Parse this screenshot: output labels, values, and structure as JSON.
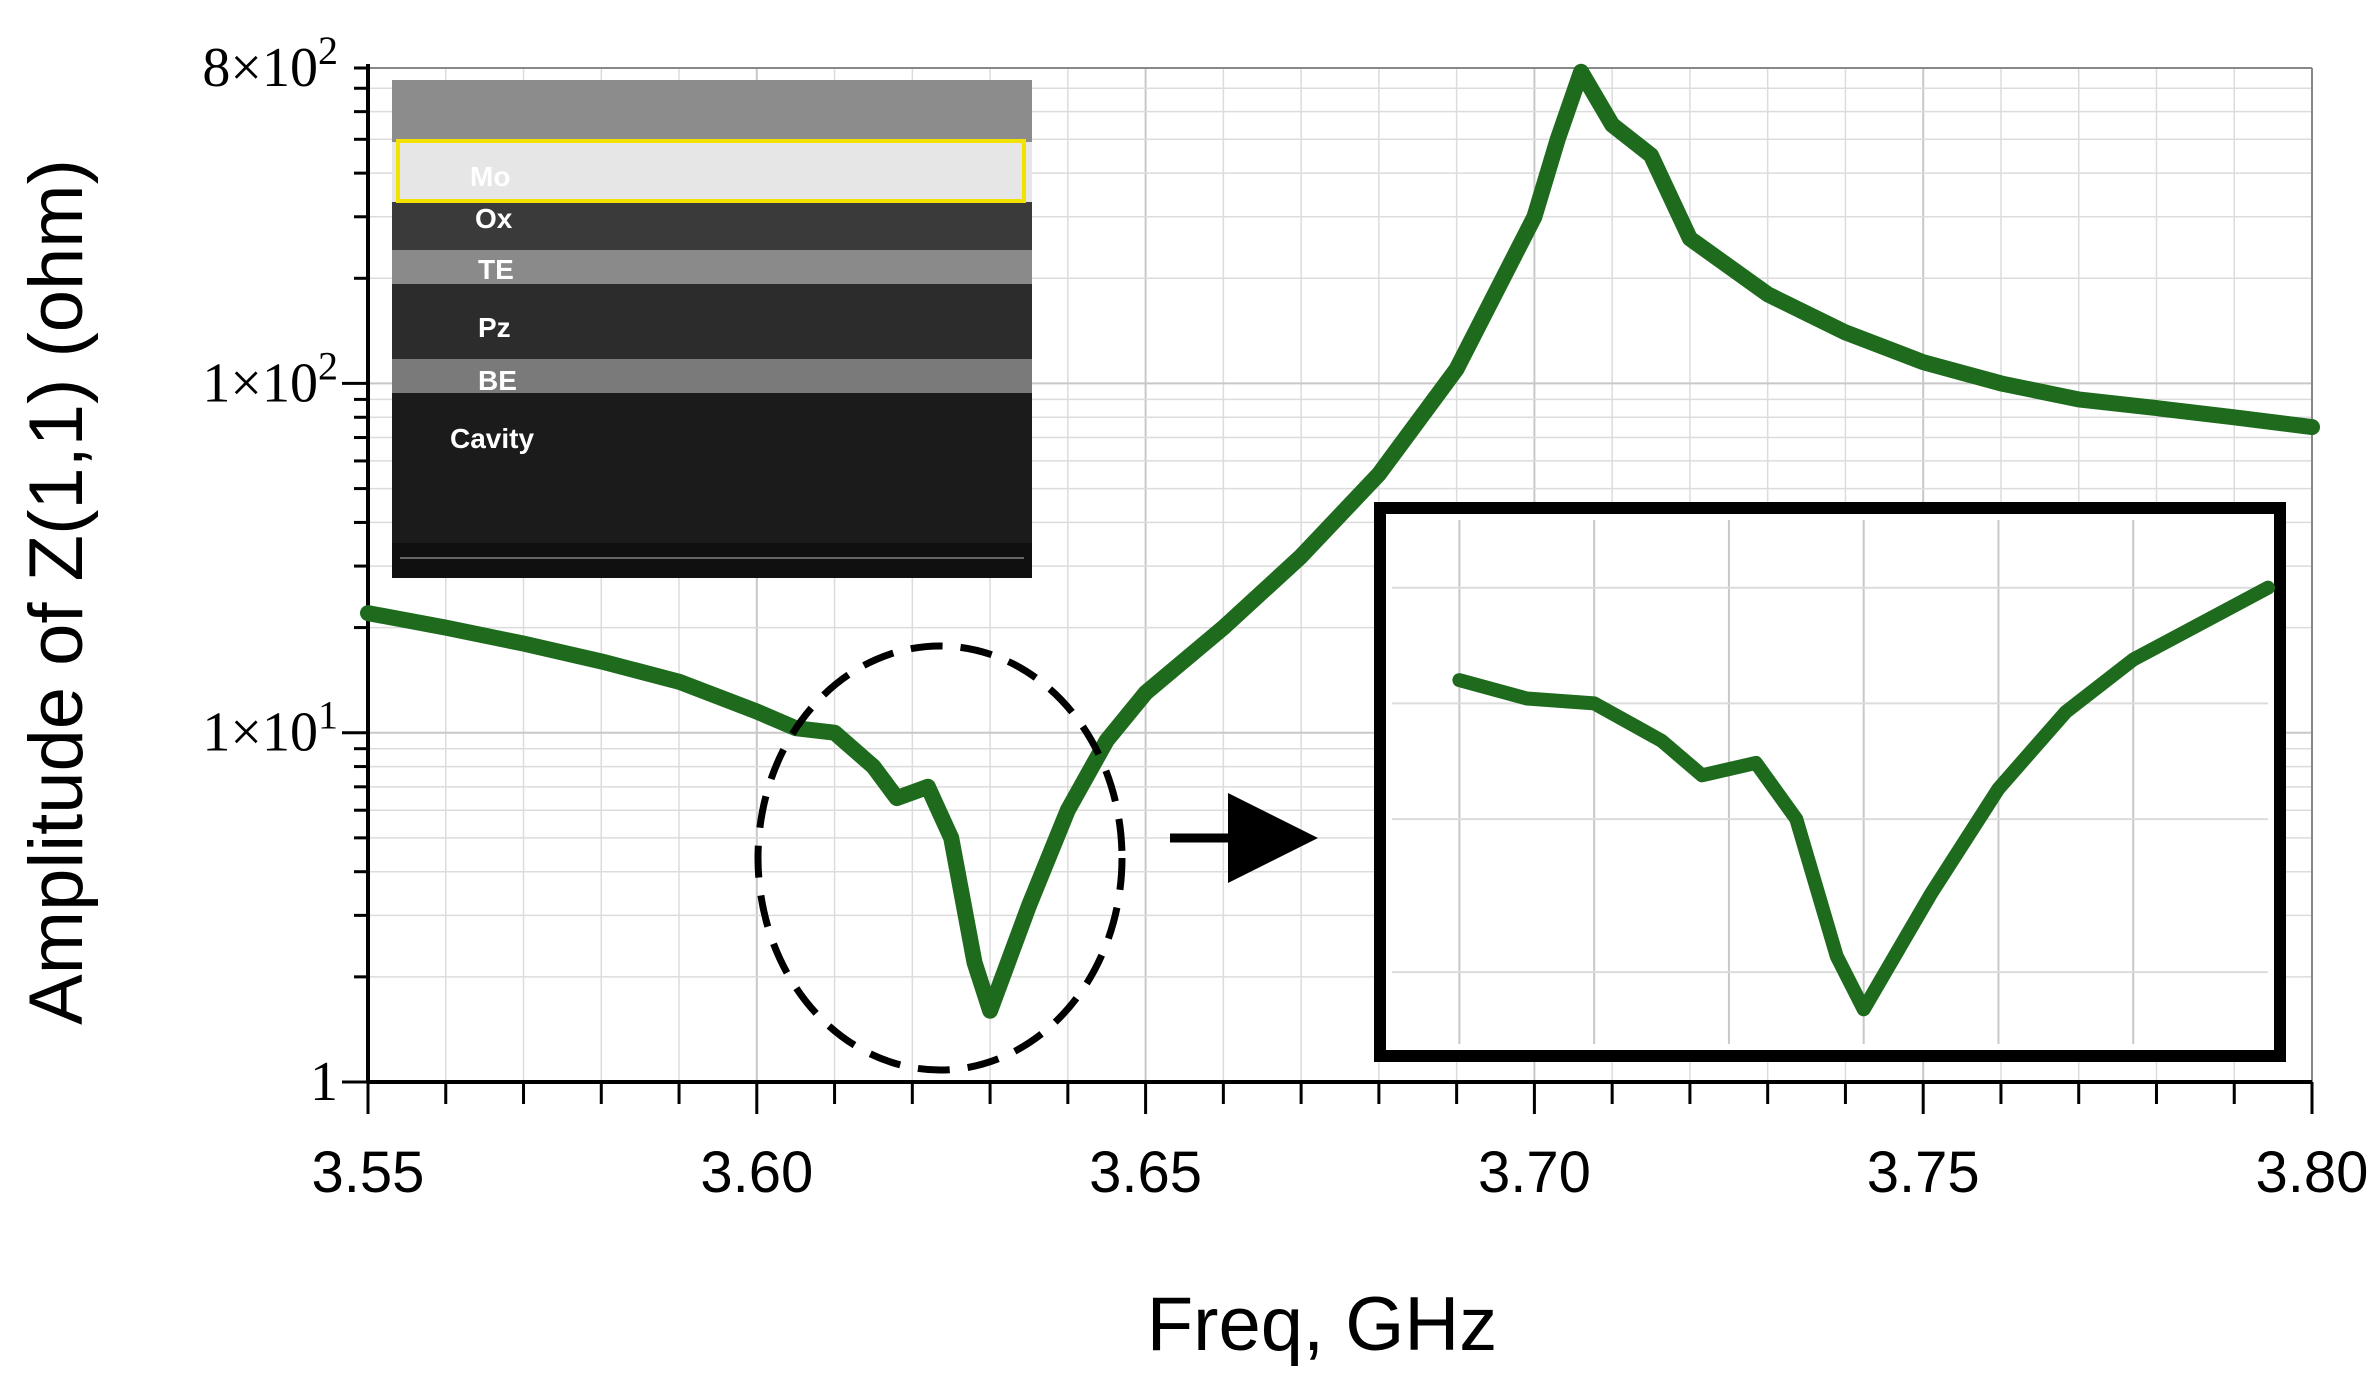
{
  "colors": {
    "curve": "#1e6b1e",
    "axis": "#000000",
    "grid_major": "#c8c8c8",
    "grid_minor": "#dcdcdc",
    "highlight_box": "#f2e200",
    "background": "#ffffff"
  },
  "chart_data": {
    "type": "line",
    "title": "",
    "xlabel": "Freq, GHz",
    "ylabel": "Amplitude of Z(1,1) (ohm)",
    "y_scale": "log",
    "xlim": [
      3.55,
      3.8
    ],
    "ylim": [
      1,
      800
    ],
    "grid": true,
    "x_ticks": [
      3.55,
      3.6,
      3.65,
      3.7,
      3.75,
      3.8
    ],
    "x_tick_labels": [
      "3.55",
      "3.60",
      "3.65",
      "3.70",
      "3.75",
      "3.80"
    ],
    "y_ticks": [
      1,
      10,
      100,
      800
    ],
    "y_tick_labels": [
      {
        "mantissa": "1",
        "exp": ""
      },
      {
        "mantissa": "1×10",
        "exp": "1"
      },
      {
        "mantissa": "1×10",
        "exp": "2"
      },
      {
        "mantissa": "8×10",
        "exp": "2"
      }
    ],
    "series": [
      {
        "x": [
          3.55,
          3.56,
          3.57,
          3.58,
          3.59,
          3.6,
          3.605,
          3.61,
          3.615,
          3.618,
          3.622,
          3.625,
          3.628,
          3.63,
          3.635,
          3.64,
          3.645,
          3.65,
          3.66,
          3.67,
          3.68,
          3.69,
          3.7,
          3.703,
          3.706,
          3.71,
          3.715,
          3.72,
          3.73,
          3.74,
          3.75,
          3.76,
          3.77,
          3.78,
          3.79,
          3.8
        ],
        "y": [
          22,
          20,
          18,
          16,
          14,
          11.5,
          10.3,
          10.0,
          8.0,
          6.5,
          7.0,
          5.0,
          2.2,
          1.6,
          3.2,
          6.0,
          9.5,
          13.0,
          20,
          32,
          55,
          110,
          300,
          500,
          780,
          550,
          450,
          260,
          180,
          140,
          115,
          100,
          90,
          85,
          80,
          75
        ]
      }
    ],
    "annotations": {
      "inset_photo_labels": [
        "Mo",
        "Ox",
        "TE",
        "Pz",
        "BE",
        "Cavity"
      ],
      "zoom_inset": {
        "xlim": [
          3.595,
          3.66
        ],
        "ylim": [
          1.3,
          30
        ],
        "x_grid": [
          3.6,
          3.61,
          3.62,
          3.63,
          3.64,
          3.65
        ]
      }
    }
  }
}
